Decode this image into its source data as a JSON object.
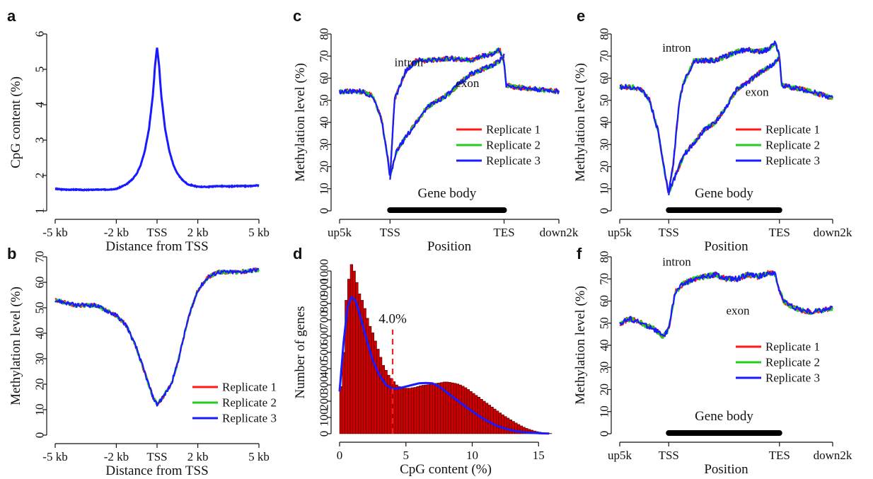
{
  "colors": {
    "rep1": "#ff1a1a",
    "rep2": "#22cc22",
    "rep3": "#1a1aff",
    "bar": "#cc0000",
    "bar_stroke": "#330000",
    "vline": "#ee2222"
  },
  "chart_data": [
    {
      "id": "a",
      "type": "line",
      "panel_label": "a",
      "xlabel": "Distance from TSS",
      "ylabel": "CpG content (%)",
      "xlim": [
        -5,
        5
      ],
      "ylim": [
        1,
        6
      ],
      "x_ticks": [
        {
          "v": -5,
          "label": "-5 kb"
        },
        {
          "v": -2,
          "label": "-2 kb"
        },
        {
          "v": 0,
          "label": "TSS"
        },
        {
          "v": 2,
          "label": "2 kb"
        },
        {
          "v": 5,
          "label": "5 kb"
        }
      ],
      "y_ticks": [
        1,
        2,
        3,
        4,
        5,
        6
      ],
      "series": [
        {
          "x": [
            -5,
            -4.5,
            -4,
            -3.5,
            -3,
            -2.5,
            -2,
            -1.5,
            -1.2,
            -1,
            -0.8,
            -0.6,
            -0.4,
            -0.2,
            -0.1,
            0,
            0.1,
            0.2,
            0.4,
            0.6,
            0.8,
            1,
            1.2,
            1.5,
            2,
            2.5,
            3,
            3.5,
            4,
            4.5,
            5
          ],
          "y": [
            1.62,
            1.6,
            1.6,
            1.59,
            1.6,
            1.6,
            1.62,
            1.75,
            1.9,
            2.05,
            2.3,
            2.7,
            3.3,
            4.3,
            5.1,
            5.62,
            5.1,
            4.3,
            3.3,
            2.7,
            2.3,
            2.05,
            1.9,
            1.75,
            1.68,
            1.68,
            1.7,
            1.69,
            1.7,
            1.7,
            1.72
          ]
        }
      ]
    },
    {
      "id": "b",
      "type": "line",
      "panel_label": "b",
      "xlabel": "Distance from TSS",
      "ylabel": "Methylation level (%)",
      "xlim": [
        -5,
        5
      ],
      "ylim": [
        0,
        70
      ],
      "x_ticks": [
        {
          "v": -5,
          "label": "-5 kb"
        },
        {
          "v": -2,
          "label": "-2 kb"
        },
        {
          "v": 0,
          "label": "TSS"
        },
        {
          "v": 2,
          "label": "2 kb"
        },
        {
          "v": 5,
          "label": "5 kb"
        }
      ],
      "y_ticks": [
        0,
        10,
        20,
        30,
        40,
        50,
        60,
        70
      ],
      "legend": [
        "Replicate 1",
        "Replicate 2",
        "Replicate 3"
      ],
      "series": [
        {
          "name": "Replicate 1",
          "x": [
            -5,
            -4,
            -3,
            -2.5,
            -2,
            -1.5,
            -1,
            -0.5,
            -0.2,
            0,
            0.3,
            0.7,
            1,
            1.5,
            2,
            2.5,
            3,
            4,
            5
          ],
          "y": [
            53,
            51,
            51,
            49,
            47,
            43,
            34,
            22,
            15,
            12,
            15,
            20,
            28,
            45,
            57,
            62,
            64,
            64,
            65
          ]
        }
      ]
    },
    {
      "id": "c",
      "type": "line",
      "panel_label": "c",
      "xlabel": "Position",
      "ylabel": "Methylation level (%)",
      "xlim": [
        0,
        10
      ],
      "ylim": [
        0,
        80
      ],
      "x_ticks": [
        {
          "v": 0,
          "label": "up5k"
        },
        {
          "v": 2.3,
          "label": "TSS"
        },
        {
          "v": 7.5,
          "label": "TES"
        },
        {
          "v": 10,
          "label": "down2k"
        }
      ],
      "y_ticks": [
        0,
        10,
        20,
        30,
        40,
        50,
        60,
        70,
        80
      ],
      "gene_body": {
        "label": "Gene body",
        "from": 2.3,
        "to": 7.5
      },
      "annotations": [
        "intron",
        "exon"
      ],
      "legend": [
        "Replicate 1",
        "Replicate 2",
        "Replicate 3"
      ],
      "series": [
        {
          "name": "intron",
          "x": [
            0,
            0.5,
            1,
            1.5,
            1.9,
            2.2,
            2.3,
            2.5,
            3,
            3.5,
            4,
            5,
            6,
            6.5,
            7,
            7.3,
            7.5,
            7.6,
            8,
            9,
            10
          ],
          "y": [
            54,
            54,
            54,
            52,
            42,
            24,
            15,
            50,
            63,
            68,
            68,
            69,
            68,
            70,
            71,
            73,
            67,
            57,
            56,
            55,
            54
          ]
        },
        {
          "name": "exon",
          "x": [
            2.3,
            2.6,
            3,
            3.5,
            4,
            4.5,
            5,
            5.5,
            6,
            6.5,
            7,
            7.3,
            7.5
          ],
          "y": [
            15,
            27,
            33,
            40,
            47,
            50,
            53,
            58,
            62,
            64,
            66,
            68,
            70
          ]
        }
      ]
    },
    {
      "id": "d",
      "type": "bar",
      "panel_label": "d",
      "xlabel": "CpG content (%)",
      "ylabel": "Number of genes",
      "xlim": [
        0,
        16
      ],
      "ylim": [
        0,
        1000
      ],
      "x_ticks": [
        {
          "v": 0,
          "label": "0"
        },
        {
          "v": 5,
          "label": "5"
        },
        {
          "v": 10,
          "label": "10"
        },
        {
          "v": 15,
          "label": "15"
        }
      ],
      "y_ticks": [
        0,
        100,
        200,
        300,
        400,
        500,
        600,
        700,
        800,
        900,
        1000
      ],
      "cutoff": {
        "x": 4.0,
        "label": "4.0%"
      },
      "bins": {
        "start": 0,
        "width": 0.2,
        "values": [
          290,
          500,
          820,
          950,
          1040,
          1000,
          930,
          860,
          820,
          770,
          710,
          660,
          620,
          570,
          520,
          470,
          420,
          390,
          360,
          340,
          320,
          300,
          290,
          285,
          280,
          280,
          280,
          283,
          285,
          290,
          295,
          298,
          300,
          302,
          305,
          307,
          310,
          312,
          315,
          318,
          318,
          316,
          313,
          310,
          306,
          300,
          292,
          283,
          272,
          260,
          248,
          236,
          225,
          212,
          200,
          188,
          176,
          164,
          152,
          140,
          128,
          117,
          106,
          96,
          86,
          76,
          66,
          57,
          48,
          40,
          33,
          27,
          22,
          17,
          13,
          10,
          7,
          5,
          3,
          2
        ]
      },
      "density": {
        "x": [
          0,
          0.3,
          0.6,
          0.9,
          1.2,
          1.5,
          2,
          2.5,
          3,
          3.5,
          4,
          4.5,
          5,
          5.5,
          6,
          6.5,
          7,
          7.5,
          8,
          8.5,
          9,
          9.5,
          10,
          10.5,
          11,
          11.5,
          12,
          13,
          14,
          15,
          15.8
        ],
        "y": [
          260,
          560,
          780,
          840,
          820,
          740,
          590,
          450,
          360,
          300,
          275,
          280,
          290,
          300,
          310,
          312,
          310,
          290,
          260,
          228,
          198,
          166,
          138,
          110,
          85,
          62,
          44,
          20,
          8,
          3,
          1
        ]
      }
    },
    {
      "id": "e",
      "type": "line",
      "panel_label": "e",
      "xlabel": "Position",
      "ylabel": "Methylation level (%)",
      "xlim": [
        0,
        10
      ],
      "ylim": [
        0,
        80
      ],
      "x_ticks": [
        {
          "v": 0,
          "label": "up5k"
        },
        {
          "v": 2.3,
          "label": "TSS"
        },
        {
          "v": 7.5,
          "label": "TES"
        },
        {
          "v": 10,
          "label": "down2k"
        }
      ],
      "y_ticks": [
        0,
        10,
        20,
        30,
        40,
        50,
        60,
        70,
        80
      ],
      "gene_body": {
        "label": "Gene body",
        "from": 2.3,
        "to": 7.5
      },
      "annotations": [
        "intron",
        "exon"
      ],
      "legend": [
        "Replicate 1",
        "Replicate 2",
        "Replicate 3"
      ],
      "series": [
        {
          "name": "intron",
          "x": [
            0,
            0.5,
            1,
            1.4,
            1.8,
            2.1,
            2.3,
            2.5,
            2.8,
            3,
            3.5,
            4,
            4.5,
            5,
            5.5,
            6,
            6.5,
            7,
            7.3,
            7.5,
            7.6,
            8,
            9,
            10
          ],
          "y": [
            56,
            56,
            55,
            50,
            36,
            18,
            8,
            20,
            50,
            58,
            68,
            68,
            68,
            70,
            72,
            73,
            72,
            73,
            76,
            70,
            57,
            56,
            54,
            51
          ]
        },
        {
          "name": "exon",
          "x": [
            2.3,
            2.7,
            3,
            3.5,
            4,
            4.5,
            5,
            5.5,
            6,
            6.5,
            7,
            7.3,
            7.5
          ],
          "y": [
            8,
            18,
            25,
            31,
            37,
            40,
            47,
            55,
            58,
            62,
            65,
            67,
            69
          ]
        }
      ]
    },
    {
      "id": "f",
      "type": "line",
      "panel_label": "f",
      "xlabel": "Position",
      "ylabel": "Methylation level (%)",
      "xlim": [
        0,
        10
      ],
      "ylim": [
        0,
        80
      ],
      "x_ticks": [
        {
          "v": 0,
          "label": "up5k"
        },
        {
          "v": 2.3,
          "label": "TSS"
        },
        {
          "v": 7.5,
          "label": "TES"
        },
        {
          "v": 10,
          "label": "down2k"
        }
      ],
      "y_ticks": [
        0,
        10,
        20,
        30,
        40,
        50,
        60,
        70,
        80
      ],
      "gene_body": {
        "label": "Gene body",
        "from": 2.3,
        "to": 7.5
      },
      "annotations": [
        "intron",
        "exon"
      ],
      "legend": [
        "Replicate 1",
        "Replicate 2",
        "Replicate 3"
      ],
      "series": [
        {
          "name": "intron",
          "x": [
            0,
            0.5,
            1,
            1.5,
            1.8,
            2,
            2.3,
            2.6,
            3,
            3.5,
            4,
            4.5,
            5,
            5.5,
            6,
            6.5,
            7,
            7.3,
            7.5,
            7.7,
            8,
            8.5,
            9,
            9.5,
            10
          ],
          "y": [
            50,
            52,
            50,
            48,
            46,
            44,
            47,
            64,
            68,
            70,
            71,
            72,
            70,
            70,
            72,
            71,
            73,
            72,
            65,
            60,
            58,
            56,
            55,
            56,
            57
          ]
        }
      ]
    }
  ]
}
